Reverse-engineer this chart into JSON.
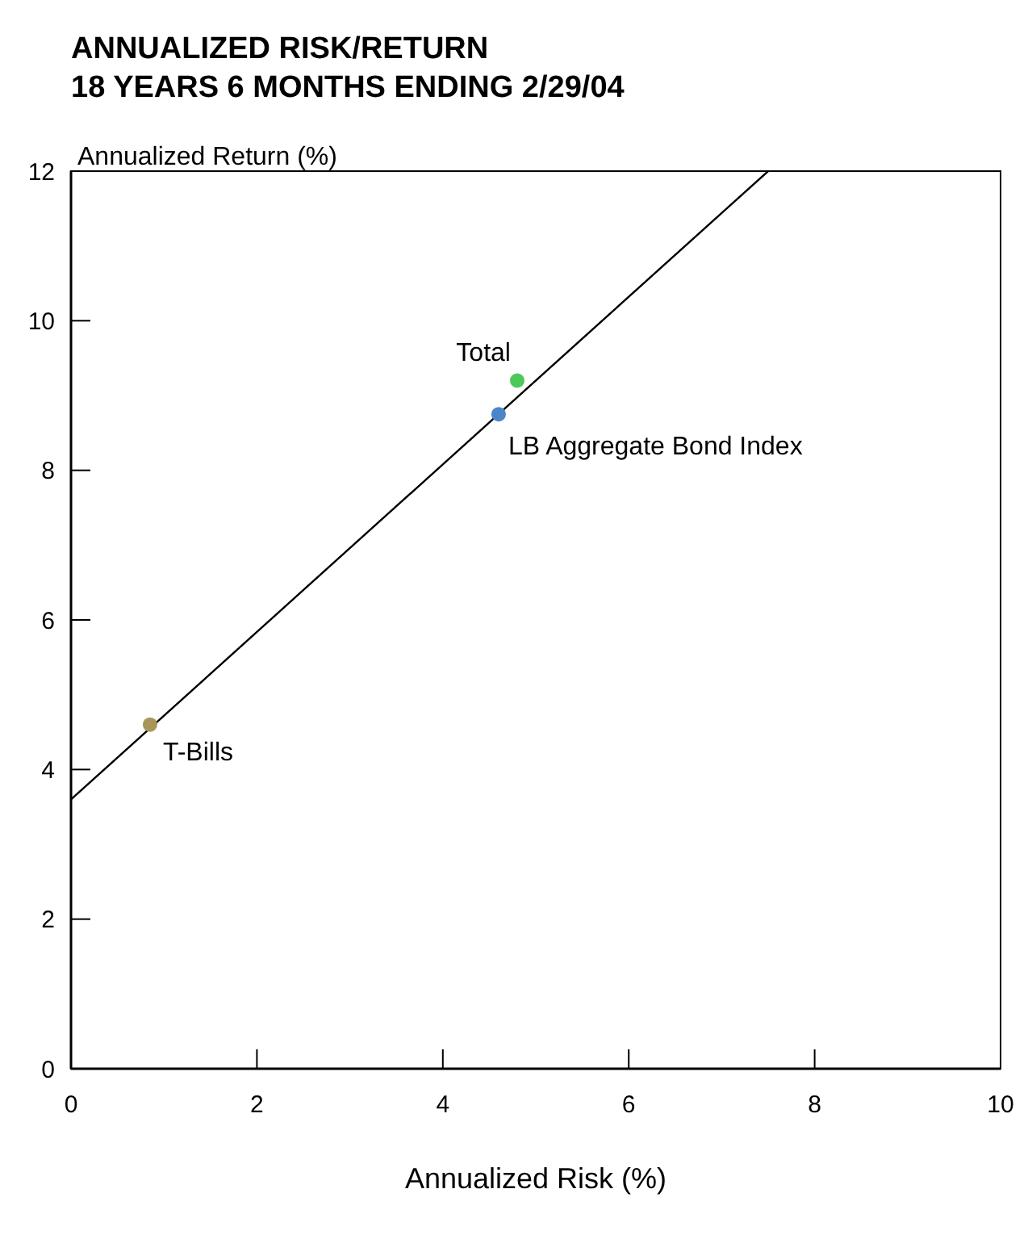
{
  "chart_data": {
    "type": "scatter",
    "title": "ANNUALIZED RISK/RETURN",
    "subtitle": "18 YEARS 6 MONTHS ENDING 2/29/04",
    "xlabel": "Annualized Risk (%)",
    "ylabel": "Annualized Return (%)",
    "xlim": [
      0,
      10
    ],
    "ylim": [
      0,
      12
    ],
    "xticks": [
      0,
      2,
      4,
      6,
      8,
      10
    ],
    "yticks": [
      0,
      2,
      4,
      6,
      8,
      10,
      12
    ],
    "grid": false,
    "series": [
      {
        "type": "line",
        "x": [
          0,
          7.5
        ],
        "values": [
          3.6,
          12
        ],
        "color": "#000000",
        "marker": "none"
      },
      {
        "name": "T-Bills",
        "x": [
          0.85
        ],
        "values": [
          4.6
        ],
        "color": "#a8955a",
        "marker": "circle"
      },
      {
        "name": "LB Aggregate Bond Index",
        "x": [
          4.6
        ],
        "values": [
          8.75
        ],
        "color": "#4a86c8",
        "marker": "circle"
      },
      {
        "name": "Total",
        "x": [
          4.8
        ],
        "values": [
          9.2
        ],
        "color": "#4cc95a",
        "marker": "circle"
      }
    ]
  }
}
